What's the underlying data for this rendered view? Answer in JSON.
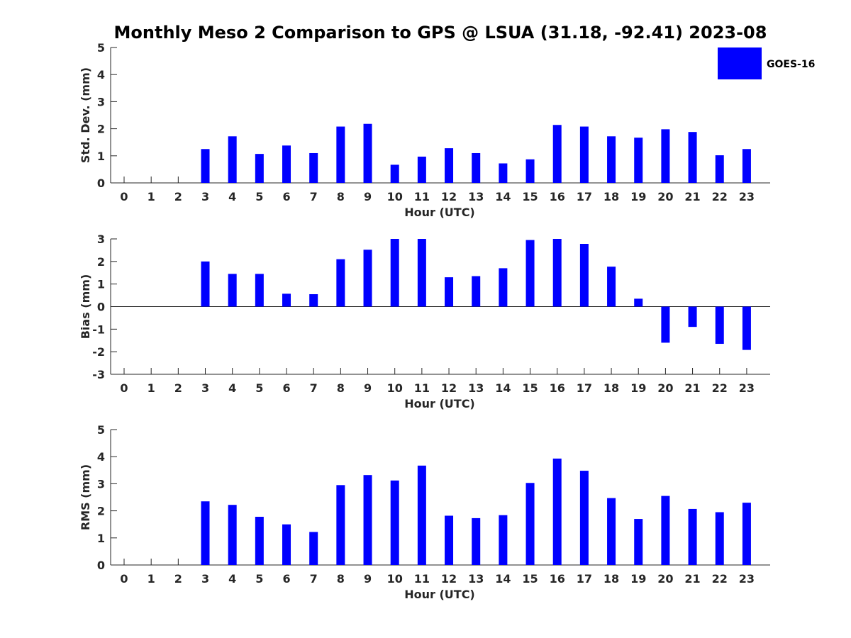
{
  "title": "Monthly Meso 2 Comparison to GPS @ LSUA (31.18, -92.41) 2023-08",
  "legend": {
    "label": "GOES-16",
    "color": "#0000ff"
  },
  "chart_data": [
    {
      "type": "bar",
      "ylabel": "Std. Dev. (mm)",
      "xlabel": "Hour (UTC)",
      "ylim": [
        0,
        5
      ],
      "yticks": [
        0,
        1,
        2,
        3,
        4,
        5
      ],
      "categories": [
        "0",
        "1",
        "2",
        "3",
        "4",
        "5",
        "6",
        "7",
        "8",
        "9",
        "10",
        "11",
        "12",
        "13",
        "14",
        "15",
        "16",
        "17",
        "18",
        "19",
        "20",
        "21",
        "22",
        "23"
      ],
      "series": [
        {
          "name": "GOES-16",
          "color": "#0000ff",
          "values": [
            null,
            null,
            null,
            1.25,
            1.72,
            1.07,
            1.38,
            1.1,
            2.08,
            2.18,
            0.67,
            0.97,
            1.28,
            1.1,
            0.72,
            0.87,
            2.14,
            2.08,
            1.72,
            1.67,
            1.98,
            1.88,
            1.02,
            1.25
          ]
        }
      ],
      "legend": "top-right",
      "grid": false
    },
    {
      "type": "bar",
      "ylabel": "Bias (mm)",
      "xlabel": "Hour (UTC)",
      "ylim": [
        -3,
        3
      ],
      "yticks": [
        -3,
        -2,
        -1,
        0,
        1,
        2,
        3
      ],
      "categories": [
        "0",
        "1",
        "2",
        "3",
        "4",
        "5",
        "6",
        "7",
        "8",
        "9",
        "10",
        "11",
        "12",
        "13",
        "14",
        "15",
        "16",
        "17",
        "18",
        "19",
        "20",
        "21",
        "22",
        "23"
      ],
      "series": [
        {
          "name": "GOES-16",
          "color": "#0000ff",
          "values": [
            null,
            null,
            null,
            2.0,
            1.45,
            1.45,
            0.57,
            0.55,
            2.1,
            2.52,
            3.0,
            3.0,
            1.3,
            1.35,
            1.7,
            2.95,
            3.0,
            2.78,
            1.77,
            0.35,
            -1.6,
            -0.9,
            -1.65,
            -1.92
          ]
        }
      ],
      "grid": false
    },
    {
      "type": "bar",
      "ylabel": "RMS (mm)",
      "xlabel": "Hour (UTC)",
      "ylim": [
        0,
        5
      ],
      "yticks": [
        0,
        1,
        2,
        3,
        4,
        5
      ],
      "categories": [
        "0",
        "1",
        "2",
        "3",
        "4",
        "5",
        "6",
        "7",
        "8",
        "9",
        "10",
        "11",
        "12",
        "13",
        "14",
        "15",
        "16",
        "17",
        "18",
        "19",
        "20",
        "21",
        "22",
        "23"
      ],
      "series": [
        {
          "name": "GOES-16",
          "color": "#0000ff",
          "values": [
            null,
            null,
            null,
            2.35,
            2.22,
            1.78,
            1.5,
            1.22,
            2.95,
            3.32,
            3.12,
            3.67,
            1.82,
            1.73,
            1.84,
            3.03,
            3.93,
            3.48,
            2.47,
            1.7,
            2.55,
            2.07,
            1.95,
            2.3
          ]
        }
      ],
      "grid": false
    }
  ]
}
